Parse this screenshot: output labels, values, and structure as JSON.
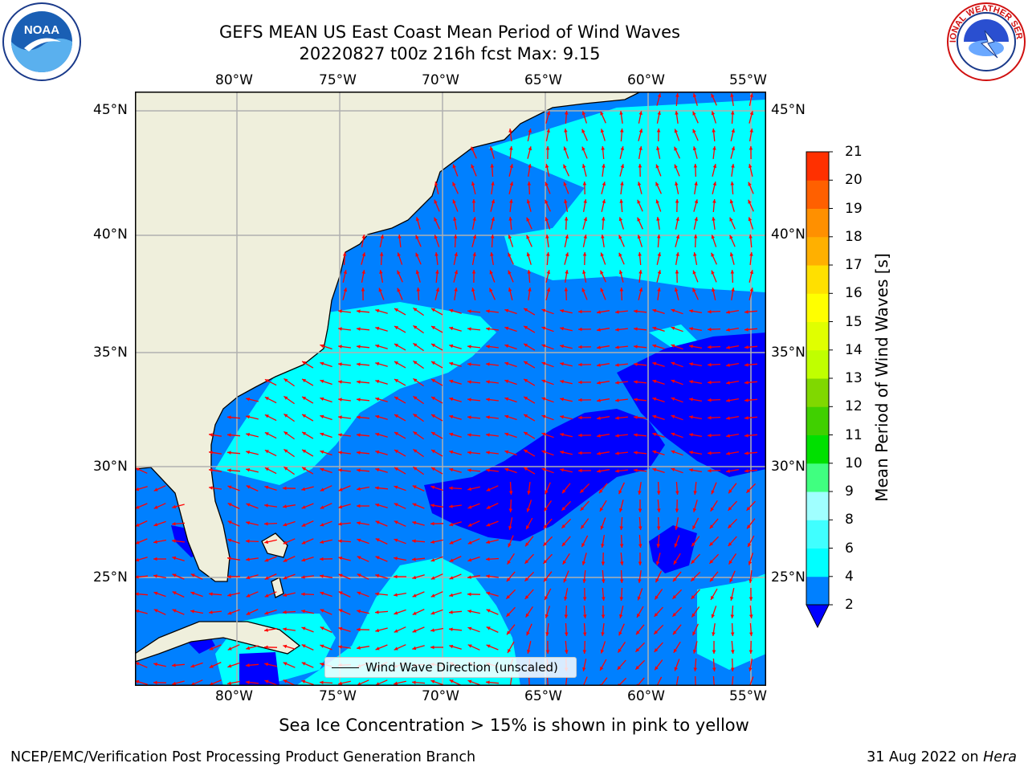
{
  "header": {
    "title_line1": "GEFS MEAN US East Coast Mean Period of Wind Waves",
    "title_line2": "20220827 t00z 216h fcst   Max: 9.15"
  },
  "logos": {
    "noaa": {
      "icon": "noaa-logo",
      "text": "NOAA",
      "ring_text": "NATIONAL OCEANIC AND ATMOSPHERIC ADMINISTRATION · U.S. DEPARTMENT OF COMMERCE"
    },
    "nws": {
      "icon": "national-weather-service-logo",
      "ring_text": "NATIONAL WEATHER SERVICE"
    }
  },
  "map": {
    "lon_ticks": [
      "80°W",
      "75°W",
      "70°W",
      "65°W",
      "60°W",
      "55°W"
    ],
    "lat_ticks": [
      "45°N",
      "40°N",
      "35°N",
      "30°N",
      "25°N"
    ],
    "legend_label": "Wind Wave Direction (unscaled)",
    "arrow_color": "#ff0000",
    "land_color": "#efefdc",
    "colors": {
      "2-4": "#0080ff",
      "4-6": "#00ffff",
      "below-2": "#0000ff"
    }
  },
  "colorbar": {
    "title": "Mean Period of Wind Waves [s]",
    "levels": [
      "2",
      "4",
      "6",
      "8",
      "9",
      "10",
      "11",
      "12",
      "13",
      "14",
      "15",
      "16",
      "17",
      "18",
      "19",
      "20",
      "21"
    ],
    "colors": [
      "#0080ff",
      "#00ffff",
      "#40ffff",
      "#a0ffff",
      "#40ff80",
      "#00e000",
      "#40d000",
      "#80d800",
      "#c0ff00",
      "#e0ff00",
      "#ffff00",
      "#ffe000",
      "#ffb000",
      "#ff9000",
      "#ff6000",
      "#ff3000"
    ],
    "under_color": "#0000ff",
    "over_color": "#ff0000"
  },
  "footer": {
    "subtitle": "Sea Ice Concentration > 15% is shown in pink to yellow",
    "left": "NCEP/EMC/Verification Post Processing Product Generation Branch",
    "right_date": "31 Aug 2022 on",
    "right_machine": "Hera"
  }
}
